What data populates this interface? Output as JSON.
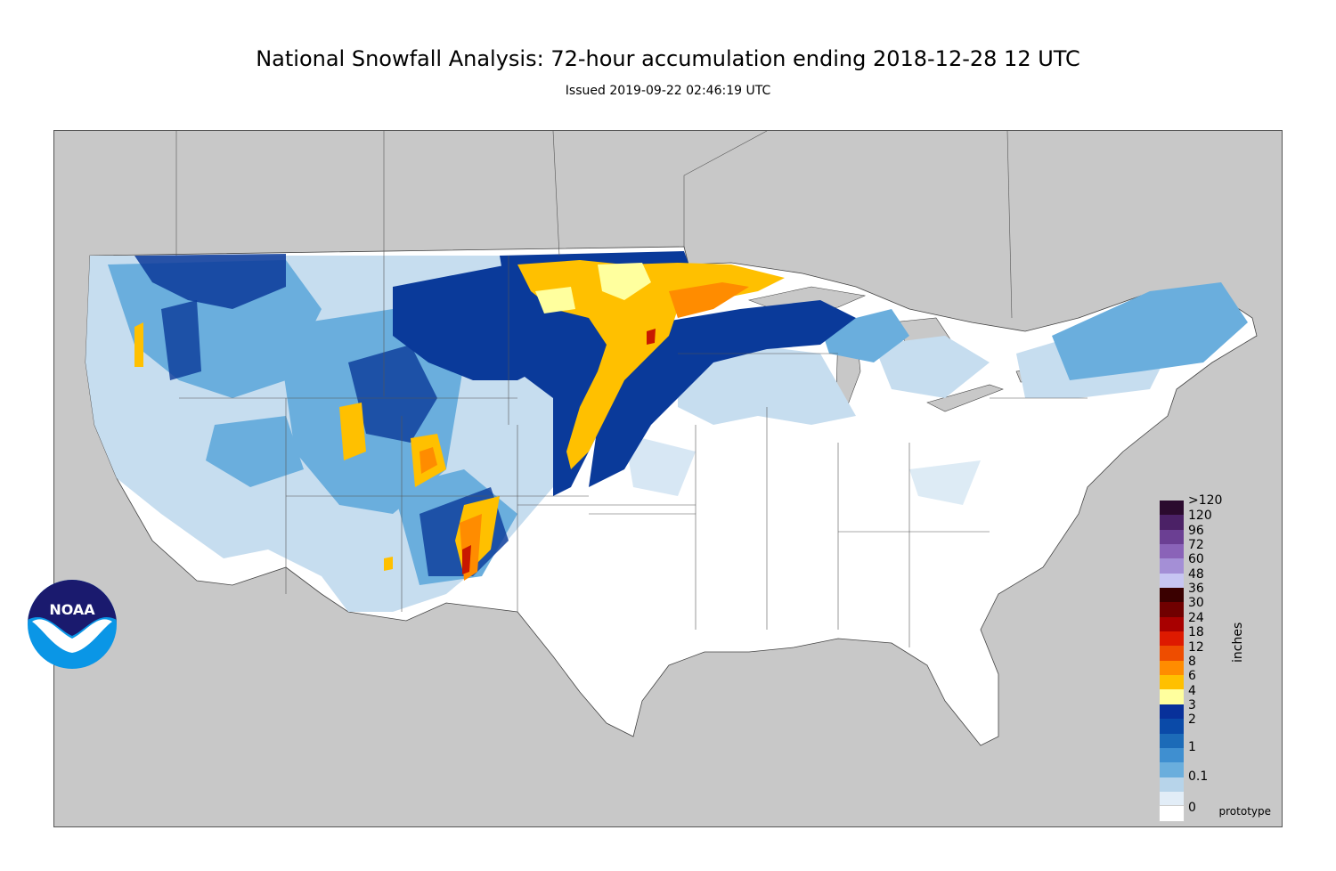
{
  "title": "National Snowfall Analysis: 72-hour accumulation ending 2018-12-28 12 UTC",
  "subtitle": "Issued 2019-09-22 02:46:19 UTC",
  "legend": {
    "units": "inches",
    "bins": [
      {
        "label": ">120",
        "color": "#2b0a2e"
      },
      {
        "label": "120",
        "color": "#4b2166"
      },
      {
        "label": "96",
        "color": "#6b3f93"
      },
      {
        "label": "72",
        "color": "#8a63b8"
      },
      {
        "label": "60",
        "color": "#a48fd6"
      },
      {
        "label": "48",
        "color": "#c7c5f2"
      },
      {
        "label": "36",
        "color": "#3a0000"
      },
      {
        "label": "30",
        "color": "#700000"
      },
      {
        "label": "24",
        "color": "#a80000"
      },
      {
        "label": "18",
        "color": "#de1a00"
      },
      {
        "label": "12",
        "color": "#ee4d00"
      },
      {
        "label": "8",
        "color": "#ff8c00"
      },
      {
        "label": "6",
        "color": "#ffc000"
      },
      {
        "label": "4",
        "color": "#ffff9e"
      },
      {
        "label": "3",
        "color": "#08309a"
      },
      {
        "label": "2",
        "color": "#0a4aa8"
      },
      {
        "label": "1",
        "color": "#1c6bb8"
      },
      {
        "label": "0.1",
        "color": "#3f8fd0"
      },
      {
        "label": "0",
        "color": "#6aaedd"
      }
    ],
    "extra_swatches": [
      "#b7d4ea",
      "#e2edf7",
      "#ffffff"
    ]
  },
  "badge": "prototype",
  "logo": {
    "text": "NOAA"
  },
  "colors": {
    "background": "#c8c8c8",
    "land": "#ffffff",
    "light_blue": "#c6ddef",
    "mid_blue": "#6aaedd",
    "blue": "#2f74c0",
    "dark_blue": "#0a3a9a",
    "yellow": "#ffc000",
    "orange": "#ff8c00",
    "red": "#c81800"
  }
}
